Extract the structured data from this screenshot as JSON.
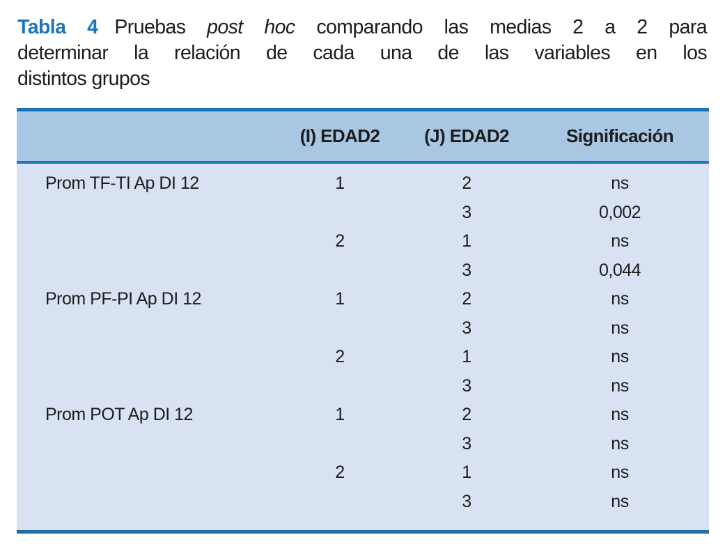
{
  "title": {
    "label": "Tabla 4",
    "line1": {
      "seg1": "Pruebas",
      "italic": "post hoc",
      "seg2": "comparando las medias 2 a 2 para"
    },
    "line2": "determinar la relación de cada una de las variables en los",
    "line3": "distintos grupos"
  },
  "table": {
    "headers": [
      "",
      "(I) EDAD2",
      "(J) EDAD2",
      "Significación"
    ],
    "rows": [
      {
        "variable": "Prom TF-TI Ap DI 12",
        "i": "1",
        "j": "2",
        "sig": "ns"
      },
      {
        "variable": "",
        "i": "",
        "j": "3",
        "sig": "0,002"
      },
      {
        "variable": "",
        "i": "2",
        "j": "1",
        "sig": "ns"
      },
      {
        "variable": "",
        "i": "",
        "j": "3",
        "sig": "0,044"
      },
      {
        "variable": "Prom PF-PI Ap DI 12",
        "i": "1",
        "j": "2",
        "sig": "ns"
      },
      {
        "variable": "",
        "i": "",
        "j": "3",
        "sig": "ns"
      },
      {
        "variable": "",
        "i": "2",
        "j": "1",
        "sig": "ns"
      },
      {
        "variable": "",
        "i": "",
        "j": "3",
        "sig": "ns"
      },
      {
        "variable": "Prom POT Ap DI 12",
        "i": "1",
        "j": "2",
        "sig": "ns"
      },
      {
        "variable": "",
        "i": "",
        "j": "3",
        "sig": "ns"
      },
      {
        "variable": "",
        "i": "2",
        "j": "1",
        "sig": "ns"
      },
      {
        "variable": "",
        "i": "",
        "j": "3",
        "sig": "ns"
      }
    ]
  },
  "colors": {
    "title-blue": "#1b75bc",
    "rule-blue": "#1b75bc",
    "rule-bottom": "#1f6f9e",
    "header-bg": "#a9c6e3",
    "body-bg": "#d9e2f3",
    "text": "#1c1c1c"
  }
}
